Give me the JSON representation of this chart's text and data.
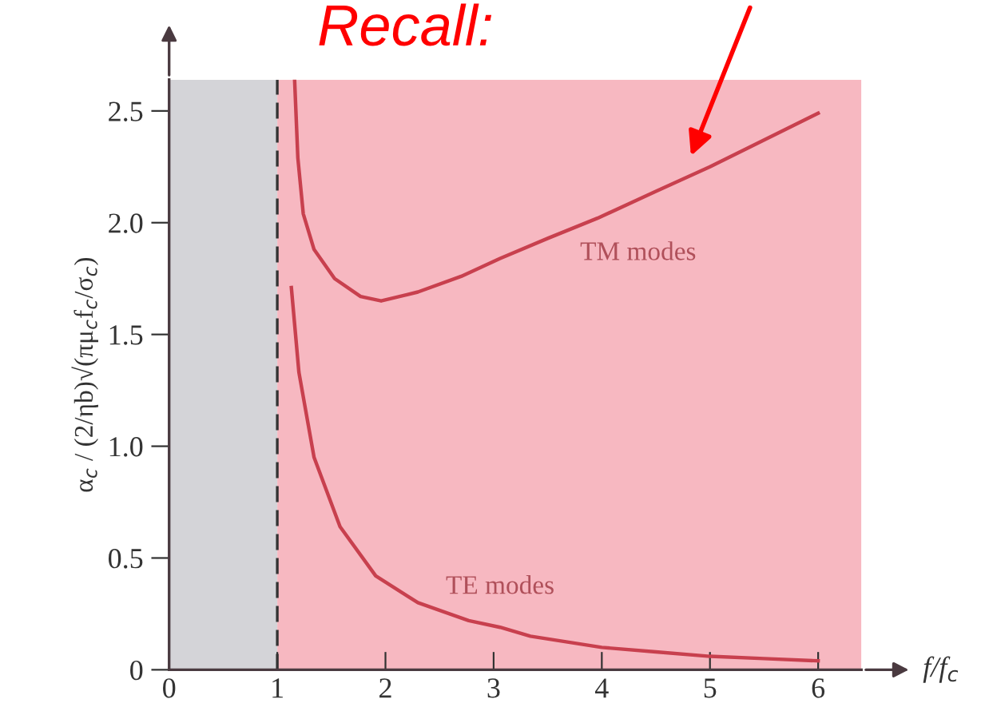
{
  "chart_data": {
    "type": "line",
    "title": "Recall:",
    "xlabel": "f/f$_{c}$",
    "ylabel": "α$_{c}$ / (2/ηb)√(πμ$_{c}$f$_{c}$/σ$_{c}$)",
    "series": [
      {
        "name": "TM modes",
        "color": "#c8404e",
        "x": [
          1.16,
          1.19,
          1.24,
          1.34,
          1.53,
          1.77,
          1.96,
          2.3,
          2.7,
          3.06,
          3.5,
          3.96,
          4.5,
          5.0,
          5.5,
          6.0
        ],
        "values": [
          2.64,
          2.29,
          2.04,
          1.88,
          1.75,
          1.67,
          1.65,
          1.69,
          1.76,
          1.84,
          1.93,
          2.02,
          2.14,
          2.25,
          2.37,
          2.49
        ]
      },
      {
        "name": "TE modes",
        "color": "#c8404e",
        "x": [
          1.13,
          1.2,
          1.34,
          1.58,
          1.91,
          2.3,
          2.77,
          3.06,
          3.34,
          4.0,
          4.5,
          5.0,
          5.5,
          6.0
        ],
        "values": [
          1.71,
          1.33,
          0.95,
          0.64,
          0.42,
          0.3,
          0.22,
          0.19,
          0.15,
          0.1,
          0.08,
          0.06,
          0.05,
          0.04
        ]
      }
    ],
    "bands": [
      {
        "axis": "x",
        "from": 0,
        "to": 1,
        "color": "#d4d4d8"
      },
      {
        "axis": "x",
        "from": 1,
        "to": 6.4,
        "color": "#f7b8c1"
      }
    ],
    "ref_lines": [
      {
        "axis": "x",
        "value": 1,
        "color": "#333333",
        "line_style": "dashed"
      }
    ],
    "xlim": [
      0,
      6.4
    ],
    "ylim": [
      0,
      2.64
    ],
    "xticks": [
      0,
      1,
      2,
      3,
      4,
      5,
      6
    ],
    "yticks": [
      0,
      0.5,
      {
        "value": 1,
        "label": "1.0"
      },
      1.5,
      {
        "value": 2,
        "label": "2.0"
      },
      2.5
    ],
    "grid": false,
    "legend": false,
    "marker": "none",
    "line_style": "solid"
  }
}
